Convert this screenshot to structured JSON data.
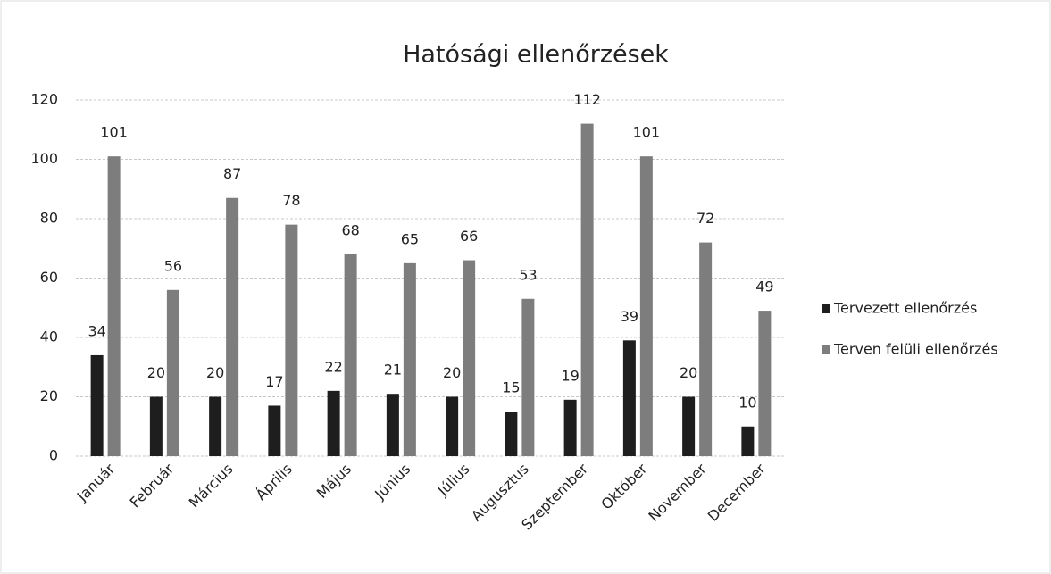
{
  "chart_data": {
    "type": "bar",
    "title": "Hatósági ellenőrzések",
    "categories": [
      "Január",
      "Február",
      "Március",
      "Április",
      "Május",
      "Június",
      "Július",
      "Augusztus",
      "Szeptember",
      "Október",
      "November",
      "December"
    ],
    "series": [
      {
        "name": "Tervezett ellenőrzés",
        "color": "#1e1e1e",
        "values": [
          34,
          20,
          20,
          17,
          22,
          21,
          20,
          15,
          19,
          39,
          20,
          10
        ]
      },
      {
        "name": "Terven felüli ellenőrzés",
        "color": "#7d7d7d",
        "values": [
          101,
          56,
          87,
          78,
          68,
          65,
          66,
          53,
          112,
          101,
          72,
          49
        ]
      }
    ],
    "ylim": [
      0,
      120
    ],
    "yticks": [
      0,
      20,
      40,
      60,
      80,
      100,
      120
    ],
    "grid": true,
    "legend": "right"
  }
}
